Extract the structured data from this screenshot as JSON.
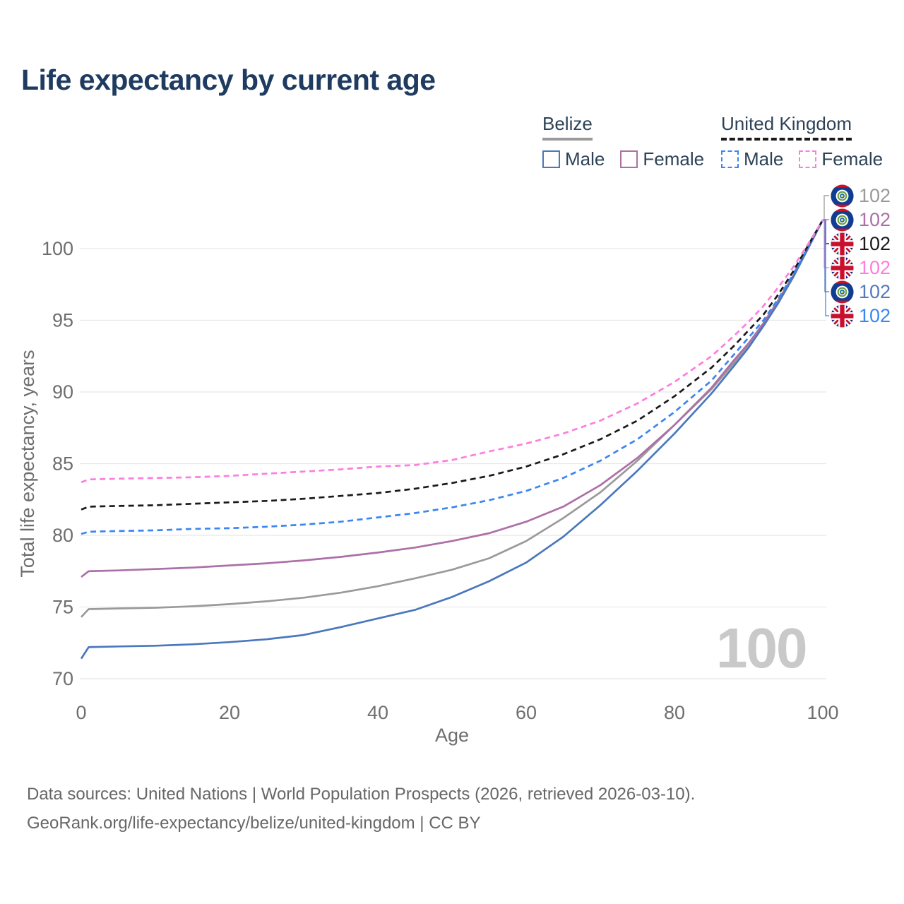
{
  "title": "Life expectancy by current age",
  "legend": {
    "groups": [
      {
        "label": "Belize",
        "underline_color": "#9a9a9a",
        "underline_style": "solid",
        "items": [
          {
            "label": "Male",
            "color": "#4a77bd",
            "dashed": false
          },
          {
            "label": "Female",
            "color": "#ad6fa7",
            "dashed": false
          }
        ]
      },
      {
        "label": "United Kingdom",
        "underline_color": "#1a1a1a",
        "underline_style": "dashed",
        "items": [
          {
            "label": "Male",
            "color": "#3b86f0",
            "dashed": true
          },
          {
            "label": "Female",
            "color": "#fc7ede",
            "dashed": true
          }
        ]
      }
    ]
  },
  "end_labels": [
    {
      "flag": "belize",
      "series": "Belize Both sexes",
      "value": "102",
      "color": "#9a9a9a"
    },
    {
      "flag": "belize",
      "series": "Belize Female",
      "value": "102",
      "color": "#ad6fa7"
    },
    {
      "flag": "uk",
      "series": "United Kingdom Both sexes",
      "value": "102",
      "color": "#1a1a1a"
    },
    {
      "flag": "uk",
      "series": "United Kingdom Female",
      "value": "102",
      "color": "#fc7ede"
    },
    {
      "flag": "belize",
      "series": "Belize Male",
      "value": "102",
      "color": "#5579bd"
    },
    {
      "flag": "uk",
      "series": "United Kingdom Male",
      "value": "102",
      "color": "#3b86f0"
    }
  ],
  "watermark": "100",
  "footer": {
    "line1": "Data sources: United Nations | World Population Prospects (2026, retrieved 2026-03-10).",
    "line2": "GeoRank.org/life-expectancy/belize/united-kingdom | CC BY"
  },
  "chart_data": {
    "type": "line",
    "title": "Life expectancy by current age",
    "xlabel": "Age",
    "ylabel": "Total life expectancy, years",
    "xlim": [
      0,
      100
    ],
    "ylim": [
      70,
      100
    ],
    "xticks": [
      0,
      20,
      40,
      60,
      80,
      100
    ],
    "yticks": [
      70,
      75,
      80,
      85,
      90,
      95,
      100
    ],
    "grid": "horizontal",
    "legend_position": "top-right",
    "ages": [
      0,
      1,
      5,
      10,
      15,
      20,
      25,
      30,
      35,
      40,
      45,
      50,
      55,
      60,
      65,
      70,
      75,
      80,
      85,
      88,
      90,
      92,
      94,
      96,
      98,
      100
    ],
    "series": [
      {
        "name": "Belize Both sexes",
        "color": "#9a9a9a",
        "dash": false,
        "values": [
          74.3,
          74.85,
          74.9,
          74.95,
          75.05,
          75.2,
          75.4,
          75.65,
          76.0,
          76.45,
          77.0,
          77.6,
          78.4,
          79.6,
          81.2,
          83.0,
          85.2,
          87.7,
          90.2,
          92.0,
          93.3,
          94.7,
          96.3,
          98.0,
          100.0,
          102
        ]
      },
      {
        "name": "Belize Female",
        "color": "#ad6fa7",
        "dash": false,
        "values": [
          77.1,
          77.5,
          77.55,
          77.65,
          77.75,
          77.9,
          78.05,
          78.25,
          78.5,
          78.8,
          79.15,
          79.6,
          80.15,
          80.95,
          82.0,
          83.5,
          85.4,
          87.7,
          90.3,
          92.2,
          93.4,
          94.8,
          96.4,
          98.1,
          100.0,
          102
        ]
      },
      {
        "name": "Belize Male",
        "color": "#4a77bd",
        "dash": false,
        "values": [
          71.4,
          72.2,
          72.25,
          72.3,
          72.4,
          72.55,
          72.75,
          73.05,
          73.6,
          74.2,
          74.8,
          75.7,
          76.8,
          78.1,
          79.9,
          82.1,
          84.5,
          87.1,
          89.9,
          91.8,
          93.1,
          94.6,
          96.2,
          98.0,
          100.0,
          102
        ]
      },
      {
        "name": "United Kingdom Male",
        "color": "#3b86f0",
        "dash": true,
        "values": [
          80.1,
          80.25,
          80.3,
          80.35,
          80.45,
          80.5,
          80.6,
          80.75,
          80.95,
          81.25,
          81.55,
          81.95,
          82.45,
          83.1,
          84.0,
          85.2,
          86.7,
          88.6,
          90.8,
          92.6,
          93.8,
          95.0,
          96.5,
          98.2,
          100.1,
          102
        ]
      },
      {
        "name": "United Kingdom Both sexes",
        "color": "#1a1a1a",
        "dash": true,
        "values": [
          81.8,
          82.0,
          82.05,
          82.1,
          82.2,
          82.3,
          82.4,
          82.55,
          82.75,
          82.95,
          83.25,
          83.65,
          84.15,
          84.8,
          85.65,
          86.7,
          88.0,
          89.7,
          91.7,
          93.2,
          94.3,
          95.4,
          96.8,
          98.4,
          100.2,
          102
        ]
      },
      {
        "name": "United Kingdom Female",
        "color": "#fc7ede",
        "dash": true,
        "values": [
          83.7,
          83.9,
          83.95,
          84.0,
          84.05,
          84.15,
          84.3,
          84.45,
          84.6,
          84.8,
          84.9,
          85.25,
          85.85,
          86.4,
          87.1,
          88.0,
          89.2,
          90.7,
          92.5,
          93.9,
          94.9,
          96.0,
          97.3,
          98.7,
          100.3,
          102
        ]
      }
    ],
    "end_value": 102,
    "end_age": 100
  }
}
